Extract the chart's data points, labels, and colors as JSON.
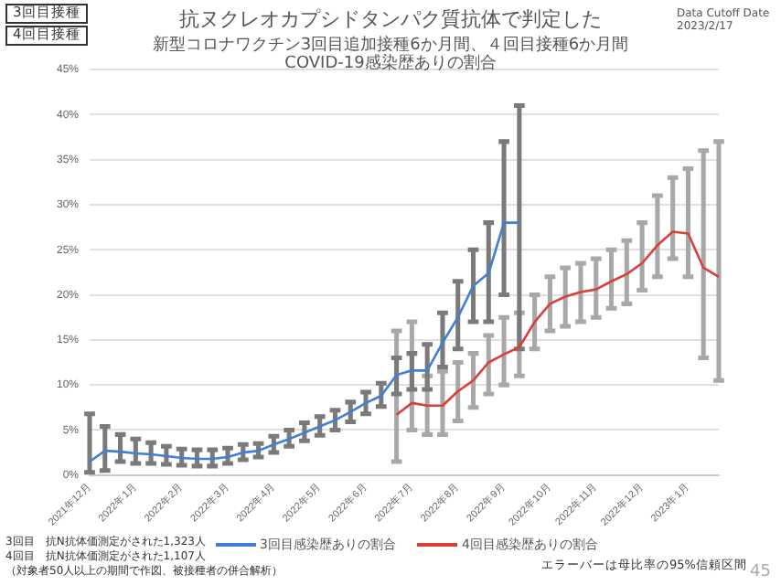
{
  "chart_data": {
    "type": "line",
    "title": "抗ヌクレオカプシドタンパク質抗体で判定した",
    "subtitle": "新型コロナワクチン3回目追加接種6か月間、４回目接種6か月間\nCOVID-19感染歴ありの割合",
    "categories": [
      "2021年12月",
      null,
      null,
      "2022年1月",
      null,
      null,
      "2022年2月",
      null,
      null,
      "2022年3月",
      null,
      null,
      "2022年4月",
      null,
      null,
      "2022年5月",
      null,
      null,
      "2022年6月",
      null,
      null,
      "2022年7月",
      null,
      null,
      "2022年8月",
      null,
      null,
      "2022年9月",
      null,
      null,
      "2022年10月",
      null,
      null,
      "2022年11月",
      null,
      null,
      "2022年12月",
      null,
      null,
      "2023年1月",
      null,
      null
    ],
    "series": [
      {
        "name": "3回目感染歴ありの割合",
        "color": "#3f7fd6",
        "values": [
          1.5,
          2.7,
          2.6,
          2.4,
          2.3,
          2.1,
          1.9,
          1.8,
          1.8,
          2.0,
          2.5,
          2.7,
          3.4,
          4.0,
          4.7,
          5.4,
          6.1,
          7.0,
          8.0,
          8.8,
          11.1,
          11.6,
          11.6,
          14.7,
          17.5,
          21,
          22.4,
          28,
          28,
          null,
          null,
          null,
          null,
          null,
          null,
          null,
          null,
          null,
          null,
          null,
          null,
          null
        ],
        "errors": [
          [
            0.3,
            6.8
          ],
          [
            0.5,
            5.4
          ],
          [
            1.5,
            4.5
          ],
          [
            1.3,
            4.0
          ],
          [
            1.3,
            3.6
          ],
          [
            1.2,
            3.2
          ],
          [
            1.1,
            2.9
          ],
          [
            1.0,
            2.8
          ],
          [
            1.0,
            2.8
          ],
          [
            1.3,
            3.0
          ],
          [
            1.7,
            3.4
          ],
          [
            2.0,
            3.5
          ],
          [
            2.5,
            4.3
          ],
          [
            3.2,
            5.0
          ],
          [
            3.8,
            5.8
          ],
          [
            4.4,
            6.5
          ],
          [
            5.0,
            7.2
          ],
          [
            5.9,
            8.1
          ],
          [
            6.8,
            9.2
          ],
          [
            7.6,
            10.2
          ],
          [
            9.0,
            13.0
          ],
          [
            9.5,
            13.5
          ],
          [
            9.5,
            14.5
          ],
          [
            12,
            18
          ],
          [
            14,
            21.5
          ],
          [
            17,
            25
          ],
          [
            17,
            28
          ],
          [
            20,
            37
          ],
          [
            14,
            41
          ],
          null,
          null,
          null,
          null,
          null,
          null,
          null,
          null,
          null,
          null,
          null,
          null,
          null
        ]
      },
      {
        "name": "4回目感染歴ありの割合",
        "color": "#d9403a",
        "values": [
          null,
          null,
          null,
          null,
          null,
          null,
          null,
          null,
          null,
          null,
          null,
          null,
          null,
          null,
          null,
          null,
          null,
          null,
          null,
          null,
          6.7,
          8.0,
          7.7,
          7.7,
          9.3,
          10.5,
          12.5,
          13.4,
          14.2,
          17.0,
          19.0,
          19.8,
          20.3,
          20.6,
          21.5,
          22.3,
          23.5,
          25.5,
          27.0,
          26.8,
          23.0,
          22.0
        ],
        "errors": [
          null,
          null,
          null,
          null,
          null,
          null,
          null,
          null,
          null,
          null,
          null,
          null,
          null,
          null,
          null,
          null,
          null,
          null,
          null,
          null,
          [
            1.5,
            16
          ],
          [
            5,
            17
          ],
          [
            4.5,
            11
          ],
          [
            4.5,
            11.5
          ],
          [
            6,
            12.5
          ],
          [
            7.5,
            13.5
          ],
          [
            9,
            15.5
          ],
          [
            10,
            17.5
          ],
          [
            11,
            18
          ],
          [
            14,
            20
          ],
          [
            16,
            22
          ],
          [
            16.5,
            23
          ],
          [
            17,
            23.5
          ],
          [
            17.5,
            24
          ],
          [
            18.5,
            25
          ],
          [
            19,
            26
          ],
          [
            20.5,
            28
          ],
          [
            22,
            31
          ],
          [
            24,
            33
          ],
          [
            22,
            34
          ],
          [
            13,
            36
          ],
          [
            10.5,
            37
          ]
        ]
      }
    ],
    "ylim": [
      0,
      45
    ],
    "yticks": [
      {
        "value": 0,
        "label": "0%"
      },
      {
        "value": 5,
        "label": "5%"
      },
      {
        "value": 10,
        "label": "10%"
      },
      {
        "value": 15,
        "label": "15%"
      },
      {
        "value": 20,
        "label": "20%"
      },
      {
        "value": 25,
        "label": "25%"
      },
      {
        "value": 30,
        "label": "30%"
      },
      {
        "value": 35,
        "label": "35%"
      },
      {
        "value": 40,
        "label": "40%"
      },
      {
        "value": 45,
        "label": "45%"
      }
    ],
    "grid": "y",
    "legend": "bottom",
    "marker": "none",
    "annotations": [
      "3回目接種",
      "4回目接種",
      "Data Cutoff Date\n2023/2/17",
      "3回目　抗N抗体価測定がされた1,323人",
      "4回目　抗N抗体価測定がされた1,107人",
      "（対象者50人以上の期間で作図、被接種者の併合解析）",
      "エラーバーは母比率の95%信頼区間",
      "45"
    ]
  }
}
